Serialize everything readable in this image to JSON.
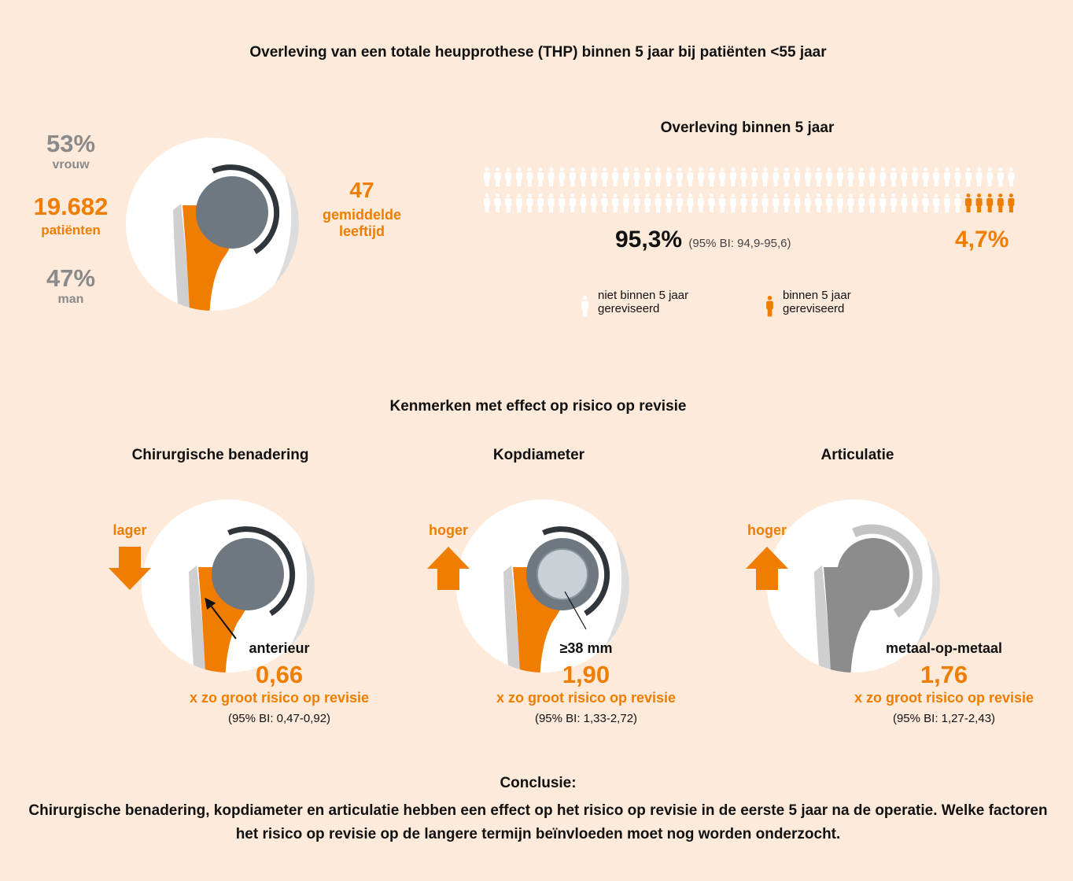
{
  "title": "Overleving van een totale heupprothese (THP) binnen 5 jaar bij patiënten <55 jaar",
  "demographics": {
    "female_pct": "53%",
    "female_label": "vrouw",
    "patients": "19.682",
    "patients_label": "patiënten",
    "male_pct": "47%",
    "male_label": "man",
    "mean_age": "47",
    "mean_age_label": "gemiddelde leeftijd"
  },
  "survival": {
    "title": "Overleving binnen 5 jaar",
    "not_revised_pct": "95,3%",
    "not_revised_ci": "(95% BI: 94,9-95,6)",
    "revised_pct": "4,7%",
    "legend": [
      "niet binnen 5 jaar gereviseerd",
      "binnen 5 jaar gereviseerd"
    ]
  },
  "characteristics": {
    "title": "Kenmerken met effect op risico op revisie",
    "panels": [
      {
        "heading": "Chirurgische benadering",
        "direction": "lager",
        "label": "anterieur",
        "value": "0,66",
        "value_caption": "x zo groot risico op revisie",
        "ci": "(95% BI: 0,47-0,92)"
      },
      {
        "heading": "Kopdiameter",
        "direction": "hoger",
        "label": "≥38 mm",
        "value": "1,90",
        "value_caption": "x zo groot risico op revisie",
        "ci": "(95% BI: 1,33-2,72)"
      },
      {
        "heading": "Articulatie",
        "direction": "hoger",
        "label": "metaal-op-metaal",
        "value": "1,76",
        "value_caption": "x zo groot risico op revisie",
        "ci": "(95% BI: 1,27-2,43)"
      }
    ]
  },
  "conclusion": {
    "heading": "Conclusie:",
    "text": "Chirurgische benadering, kopdiameter en articulatie hebben een effect op het risico op revisie in de eerste 5 jaar na de operatie. Welke factoren het risico op revisie op de langere termijn beïnvloeden moet nog worden onderzocht."
  }
}
